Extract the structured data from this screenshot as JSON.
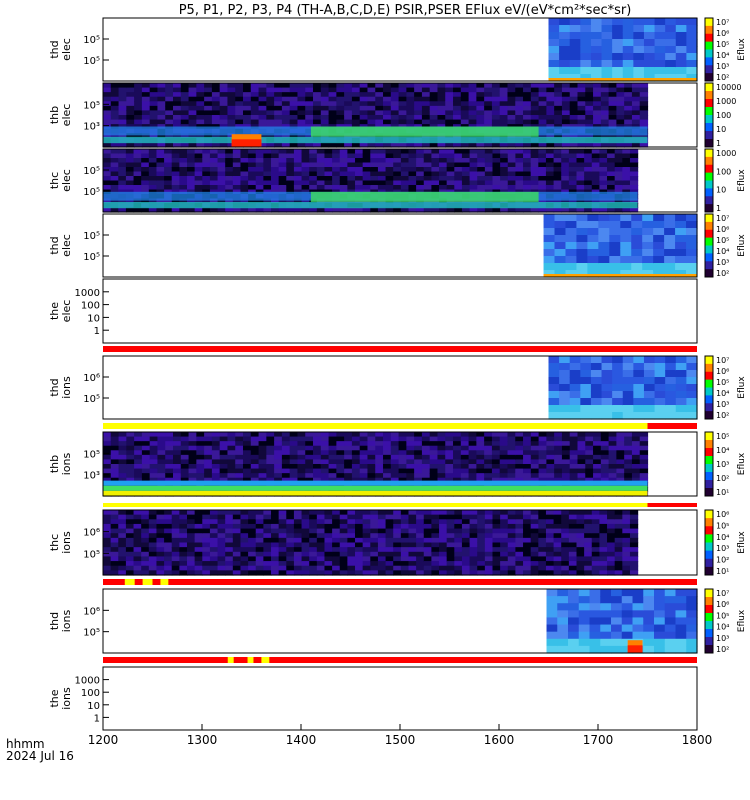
{
  "chart_data": {
    "type": "heatmap",
    "title": "P5, P1, P2, P3, P4 (TH-A,B,C,D,E) PSIR,PSER EFlux eV/(eV*cm²*sec*sr)",
    "x_axis": {
      "range": [
        1200,
        1800
      ],
      "ticks": [
        "1200",
        "1300",
        "1400",
        "1500",
        "1600",
        "1700",
        "1800"
      ],
      "label_line1": "hhmm",
      "label_line2": "2024 Jul 16"
    },
    "panels": [
      {
        "label1": "thd",
        "label2": "elec",
        "yticks": [
          "10⁵",
          "10⁵"
        ],
        "colorbar": {
          "label": "Eflux",
          "ticks": [
            "10⁷",
            "10⁶",
            "10⁵",
            "10⁴",
            "10³",
            "10²"
          ]
        },
        "data_start": 1650,
        "data_end": 1800,
        "palette": "blue-high",
        "bottom_strip": "orange"
      },
      {
        "label1": "thb",
        "label2": "elec",
        "yticks": [
          "10⁵",
          "10³"
        ],
        "colorbar": {
          "label": "",
          "ticks": [
            "10000",
            "1000",
            "100",
            "10",
            "1"
          ]
        },
        "data_start": 1200,
        "data_end": 1750,
        "palette": "noisy-dark",
        "feature": "green-band",
        "hot_spot": [
          1330,
          1360
        ]
      },
      {
        "label1": "thc",
        "label2": "elec",
        "yticks": [
          "10⁵",
          "10⁵"
        ],
        "colorbar": {
          "label": "Eflux",
          "ticks": [
            "1000",
            "100",
            "10",
            "1"
          ]
        },
        "data_start": 1200,
        "data_end": 1740,
        "palette": "noisy-dark",
        "feature": "green-band"
      },
      {
        "label1": "thd",
        "label2": "elec",
        "yticks": [
          "10⁵",
          "10⁵"
        ],
        "colorbar": {
          "label": "Eflux",
          "ticks": [
            "10⁷",
            "10⁶",
            "10⁵",
            "10⁴",
            "10³",
            "10²"
          ]
        },
        "data_start": 1645,
        "data_end": 1800,
        "palette": "blue-high",
        "bottom_strip": "orange"
      },
      {
        "label1": "the",
        "label2": "elec",
        "yticks": [
          "1000",
          "100",
          "10",
          "1"
        ],
        "colorbar": null,
        "data_start": null,
        "data_end": null,
        "palette": "none",
        "flag_bar": "red"
      },
      {
        "label1": "thd",
        "label2": "ions",
        "yticks": [
          "10⁶",
          "10⁵"
        ],
        "colorbar": {
          "label": "Eflux",
          "ticks": [
            "10⁷",
            "10⁶",
            "10⁵",
            "10⁴",
            "10³",
            "10²"
          ]
        },
        "data_start": 1650,
        "data_end": 1800,
        "palette": "blue-high",
        "flag_bar": "yellow-red"
      },
      {
        "label1": "thb",
        "label2": "ions",
        "yticks": [
          "10⁵",
          "10³"
        ],
        "colorbar": {
          "label": "Eflux",
          "ticks": [
            "10⁵",
            "10⁴",
            "10³",
            "10²",
            "10¹"
          ]
        },
        "data_start": 1200,
        "data_end": 1750,
        "palette": "noisy-dark",
        "feature": "bottom-band",
        "flag_bar": "yellow-red"
      },
      {
        "label1": "thc",
        "label2": "ions",
        "yticks": [
          "10⁶",
          "10⁵"
        ],
        "colorbar": {
          "label": "Eflux",
          "ticks": [
            "10⁶",
            "10⁵",
            "10⁴",
            "10³",
            "10²",
            "10¹"
          ]
        },
        "data_start": 1200,
        "data_end": 1740,
        "palette": "noisy-dark",
        "flag_bar": "red-yellow"
      },
      {
        "label1": "thd",
        "label2": "ions",
        "yticks": [
          "10⁶",
          "10⁵"
        ],
        "colorbar": {
          "label": "Eflux",
          "ticks": [
            "10⁷",
            "10⁶",
            "10⁵",
            "10⁴",
            "10³",
            "10²"
          ]
        },
        "data_start": 1648,
        "data_end": 1800,
        "palette": "blue-high",
        "hot_spot": [
          1730,
          1745
        ],
        "flag_bar": "red-yellow"
      },
      {
        "label1": "the",
        "label2": "ions",
        "yticks": [
          "1000",
          "100",
          "10",
          "1"
        ],
        "colorbar": null,
        "data_start": null,
        "data_end": null,
        "palette": "none"
      }
    ],
    "grid": false,
    "legend": "right"
  }
}
